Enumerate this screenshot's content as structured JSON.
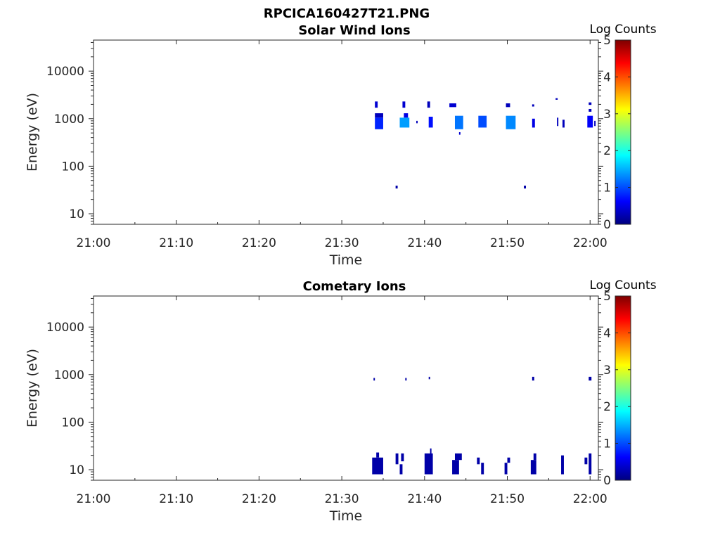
{
  "figure": {
    "title": "RPCICA160427T21.PNG"
  },
  "colors": {
    "background": "#ffffff",
    "axis": "#262626",
    "colormap": [
      "#00007f",
      "#0000ff",
      "#007fff",
      "#00ffff",
      "#7fff7f",
      "#ffff00",
      "#ff7f00",
      "#ff0000",
      "#7f0000"
    ]
  },
  "chart_data": [
    {
      "type": "heatmap",
      "title": "Solar Wind Ions",
      "xlabel": "Time",
      "ylabel": "Energy (eV)",
      "y_scale": "log",
      "xlim": [
        "21:00",
        "22:01"
      ],
      "ylim": [
        6,
        45000
      ],
      "x_ticks": [
        "21:00",
        "21:10",
        "21:20",
        "21:30",
        "21:40",
        "21:50",
        "22:00"
      ],
      "y_ticks": [
        "10",
        "100",
        "1000",
        "10000"
      ],
      "colorbar": {
        "label": "Log Counts",
        "range": [
          0,
          5
        ],
        "ticks": [
          "0",
          "1",
          "2",
          "3",
          "4",
          "5"
        ]
      },
      "cells": [
        {
          "t0": "21:34:00",
          "t1": "21:34:20",
          "e0": 1700,
          "e1": 2300,
          "v": 0.4
        },
        {
          "t0": "21:34:00",
          "t1": "21:35:00",
          "e0": 1050,
          "e1": 1300,
          "v": 0.3
        },
        {
          "t0": "21:34:00",
          "t1": "21:35:00",
          "e0": 600,
          "e1": 1050,
          "v": 0.8
        },
        {
          "t0": "21:37:20",
          "t1": "21:37:40",
          "e0": 1700,
          "e1": 2300,
          "v": 0.4
        },
        {
          "t0": "21:37:30",
          "t1": "21:38:00",
          "e0": 1050,
          "e1": 1300,
          "v": 0.5
        },
        {
          "t0": "21:37:00",
          "t1": "21:38:10",
          "e0": 650,
          "e1": 1050,
          "v": 1.4
        },
        {
          "t0": "21:40:20",
          "t1": "21:40:40",
          "e0": 1700,
          "e1": 2300,
          "v": 0.3
        },
        {
          "t0": "21:40:30",
          "t1": "21:41:00",
          "e0": 650,
          "e1": 1100,
          "v": 0.7
        },
        {
          "t0": "21:43:00",
          "t1": "21:43:50",
          "e0": 1750,
          "e1": 2100,
          "v": 0.4
        },
        {
          "t0": "21:43:40",
          "t1": "21:44:40",
          "e0": 600,
          "e1": 1150,
          "v": 1.2
        },
        {
          "t0": "21:44:10",
          "t1": "21:44:20",
          "e0": 460,
          "e1": 520,
          "v": 0.4
        },
        {
          "t0": "21:46:30",
          "t1": "21:47:30",
          "e0": 650,
          "e1": 1150,
          "v": 1.0
        },
        {
          "t0": "21:49:50",
          "t1": "21:50:20",
          "e0": 1750,
          "e1": 2100,
          "v": 0.3
        },
        {
          "t0": "21:49:50",
          "t1": "21:51:00",
          "e0": 600,
          "e1": 1150,
          "v": 1.3
        },
        {
          "t0": "21:53:00",
          "t1": "21:53:15",
          "e0": 1800,
          "e1": 2000,
          "v": 0.3
        },
        {
          "t0": "21:53:00",
          "t1": "21:53:20",
          "e0": 650,
          "e1": 1000,
          "v": 0.5
        },
        {
          "t0": "21:55:50",
          "t1": "21:56:05",
          "e0": 2500,
          "e1": 2700,
          "v": 0.3
        },
        {
          "t0": "21:56:00",
          "t1": "21:56:10",
          "e0": 700,
          "e1": 1050,
          "v": 0.3
        },
        {
          "t0": "21:56:40",
          "t1": "21:56:55",
          "e0": 650,
          "e1": 950,
          "v": 0.3
        },
        {
          "t0": "21:59:50",
          "t1": "22:00:10",
          "e0": 1950,
          "e1": 2200,
          "v": 0.3
        },
        {
          "t0": "21:59:50",
          "t1": "22:00:10",
          "e0": 1400,
          "e1": 1600,
          "v": 0.3
        },
        {
          "t0": "21:59:40",
          "t1": "22:00:20",
          "e0": 650,
          "e1": 1150,
          "v": 0.6
        },
        {
          "t0": "22:00:30",
          "t1": "22:00:40",
          "e0": 700,
          "e1": 900,
          "v": 0.3
        },
        {
          "t0": "21:39:00",
          "t1": "21:39:10",
          "e0": 800,
          "e1": 900,
          "v": 0.3
        },
        {
          "t0": "21:36:30",
          "t1": "21:36:45",
          "e0": 34,
          "e1": 39,
          "v": 0.2
        },
        {
          "t0": "21:52:00",
          "t1": "21:52:15",
          "e0": 34,
          "e1": 39,
          "v": 0.2
        }
      ]
    },
    {
      "type": "heatmap",
      "title": "Cometary Ions",
      "xlabel": "Time",
      "ylabel": "Energy (eV)",
      "y_scale": "log",
      "xlim": [
        "21:00",
        "22:01"
      ],
      "ylim": [
        6,
        45000
      ],
      "x_ticks": [
        "21:00",
        "21:10",
        "21:20",
        "21:30",
        "21:40",
        "21:50",
        "22:00"
      ],
      "y_ticks": [
        "10",
        "100",
        "1000",
        "10000"
      ],
      "colorbar": {
        "label": "Log Counts",
        "range": [
          0,
          5
        ],
        "ticks": [
          "0",
          "1",
          "2",
          "3",
          "4",
          "5"
        ]
      },
      "cells": [
        {
          "t0": "21:33:50",
          "t1": "21:34:00",
          "e0": 750,
          "e1": 850,
          "v": 0.2
        },
        {
          "t0": "21:37:40",
          "t1": "21:37:50",
          "e0": 750,
          "e1": 850,
          "v": 0.2
        },
        {
          "t0": "21:40:30",
          "t1": "21:40:40",
          "e0": 800,
          "e1": 900,
          "v": 0.2
        },
        {
          "t0": "21:53:00",
          "t1": "21:53:15",
          "e0": 750,
          "e1": 900,
          "v": 0.2
        },
        {
          "t0": "21:59:50",
          "t1": "22:00:10",
          "e0": 750,
          "e1": 900,
          "v": 0.2
        },
        {
          "t0": "21:33:40",
          "t1": "21:35:00",
          "e0": 8,
          "e1": 18,
          "v": 0.2
        },
        {
          "t0": "21:34:10",
          "t1": "21:34:30",
          "e0": 18,
          "e1": 23,
          "v": 0.2
        },
        {
          "t0": "21:36:30",
          "t1": "21:36:50",
          "e0": 13,
          "e1": 22,
          "v": 0.2
        },
        {
          "t0": "21:37:00",
          "t1": "21:37:20",
          "e0": 8,
          "e1": 13,
          "v": 0.2
        },
        {
          "t0": "21:37:10",
          "t1": "21:37:30",
          "e0": 15,
          "e1": 22,
          "v": 0.2
        },
        {
          "t0": "21:40:00",
          "t1": "21:41:00",
          "e0": 8,
          "e1": 22,
          "v": 0.2
        },
        {
          "t0": "21:40:40",
          "t1": "21:40:50",
          "e0": 20,
          "e1": 28,
          "v": 0.2
        },
        {
          "t0": "21:43:20",
          "t1": "21:44:10",
          "e0": 8,
          "e1": 16,
          "v": 0.2
        },
        {
          "t0": "21:43:40",
          "t1": "21:44:30",
          "e0": 16,
          "e1": 22,
          "v": 0.2
        },
        {
          "t0": "21:46:20",
          "t1": "21:46:40",
          "e0": 13,
          "e1": 18,
          "v": 0.2
        },
        {
          "t0": "21:46:50",
          "t1": "21:47:10",
          "e0": 8,
          "e1": 14,
          "v": 0.2
        },
        {
          "t0": "21:49:40",
          "t1": "21:50:00",
          "e0": 8,
          "e1": 14,
          "v": 0.2
        },
        {
          "t0": "21:50:00",
          "t1": "21:50:20",
          "e0": 14,
          "e1": 18,
          "v": 0.2
        },
        {
          "t0": "21:52:50",
          "t1": "21:53:30",
          "e0": 8,
          "e1": 16,
          "v": 0.2
        },
        {
          "t0": "21:53:10",
          "t1": "21:53:30",
          "e0": 16,
          "e1": 22,
          "v": 0.2
        },
        {
          "t0": "21:56:30",
          "t1": "21:56:50",
          "e0": 8,
          "e1": 20,
          "v": 0.2
        },
        {
          "t0": "21:59:20",
          "t1": "21:59:40",
          "e0": 13,
          "e1": 18,
          "v": 0.2
        },
        {
          "t0": "21:59:50",
          "t1": "22:00:10",
          "e0": 8,
          "e1": 22,
          "v": 0.2
        }
      ]
    }
  ]
}
